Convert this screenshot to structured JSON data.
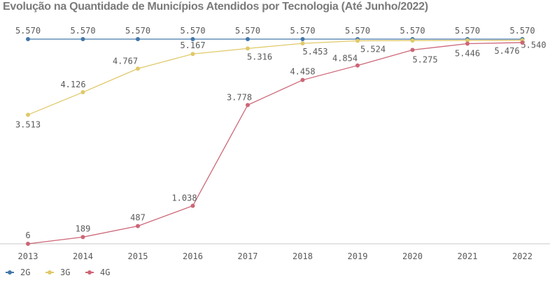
{
  "chart_data": {
    "type": "line",
    "title": "Evolução na Quantidade de Municípios Atendidos por Tecnologia (Até Junho/2022)",
    "categories": [
      "2013",
      "2014",
      "2015",
      "2016",
      "2017",
      "2018",
      "2019",
      "2020",
      "2021",
      "2022"
    ],
    "ylim": [
      0,
      5800
    ],
    "grid": false,
    "legend_position": "bottom-left",
    "series": [
      {
        "name": "2G",
        "color": "#4477aa",
        "values": [
          5570,
          5570,
          5570,
          5570,
          5570,
          5570,
          5570,
          5570,
          5570,
          5570
        ],
        "labels": [
          "5.570",
          "5.570",
          "5.570",
          "5.570",
          "5.570",
          "5.570",
          "5.570",
          "5.570",
          "5.570",
          "5.570"
        ]
      },
      {
        "name": "3G",
        "color": "#e0c96a",
        "values": [
          3513,
          4126,
          4767,
          5167,
          5316,
          5453,
          5524,
          5531,
          5535,
          5540
        ],
        "labels": [
          "3.513",
          "4.126",
          "4.767",
          "5.167",
          "5.316",
          "5.453",
          "5.524",
          "",
          "",
          "5.540"
        ]
      },
      {
        "name": "4G",
        "color": "#cc6677",
        "values": [
          6,
          189,
          487,
          1038,
          3778,
          4458,
          4854,
          5275,
          5446,
          5476
        ],
        "labels": [
          "6",
          "189",
          "487",
          "1.038",
          "3.778",
          "4.458",
          "4.854",
          "5.275",
          "5.446",
          "5.476"
        ]
      }
    ]
  }
}
